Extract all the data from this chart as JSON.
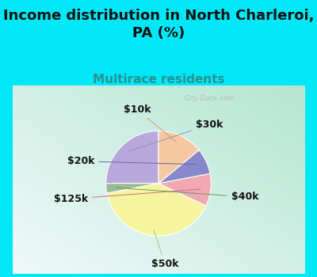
{
  "title": "Income distribution in North Charleroi,\nPA (%)",
  "subtitle": "Multirace residents",
  "title_fontsize": 13,
  "subtitle_fontsize": 11,
  "title_color": "#111111",
  "subtitle_color": "#2a9090",
  "fig_bg_color": "#00e8f8",
  "chart_bg_top": "#f0fafa",
  "chart_bg_bottom": "#c8eedd",
  "labels": [
    "$30k",
    "$40k",
    "$50k",
    "$125k",
    "$20k",
    "$10k"
  ],
  "sizes": [
    25,
    3,
    40,
    10,
    8,
    14
  ],
  "colors": [
    "#b8a8dc",
    "#9aba98",
    "#f5f5a0",
    "#f0a8b2",
    "#8888cc",
    "#f5c8a0"
  ],
  "startangle": 90,
  "label_fontsize": 9,
  "watermark": "City-Data.com"
}
